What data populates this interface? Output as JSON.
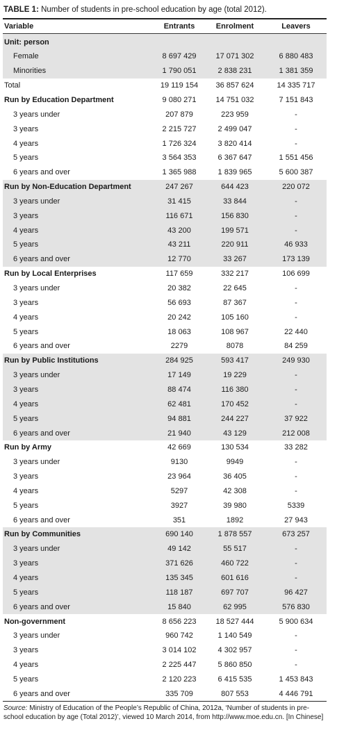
{
  "title": {
    "label": "TABLE 1:",
    "text": "Number of students in pre-school education by age (total 2012)."
  },
  "table": {
    "columns": [
      "Variable",
      "Entrants",
      "Enrolment",
      "Leavers"
    ],
    "rows": [
      [
        "Unit: person"
      ],
      [
        "Female",
        "8 697 429",
        "17 071 302",
        "6 880 483"
      ],
      [
        "Minorities",
        "1 790 051",
        "2 838 231",
        "1 381 359"
      ],
      [
        "Total",
        "19 119 154",
        "36 857 624",
        "14 335 717"
      ],
      [
        "Run by Education Department",
        "9 080 271",
        "14 751 032",
        "7 151 843"
      ],
      [
        "3 years under",
        "207 879",
        "223 959",
        "-"
      ],
      [
        "3 years",
        "2 215 727",
        "2 499 047",
        "-"
      ],
      [
        "4 years",
        "1 726 324",
        "3 820 414",
        "-"
      ],
      [
        "5 years",
        "3 564 353",
        "6 367 647",
        "1 551 456"
      ],
      [
        "6 years and over",
        "1 365 988",
        "1 839 965",
        "5 600 387"
      ],
      [
        "Run by Non-Education Department",
        "247 267",
        "644 423",
        "220 072"
      ],
      [
        "3 years under",
        "31 415",
        "33 844",
        "-"
      ],
      [
        "3 years",
        "116 671",
        "156 830",
        "-"
      ],
      [
        "4 years",
        "43 200",
        "199 571",
        "-"
      ],
      [
        "5 years",
        "43 211",
        "220 911",
        "46 933"
      ],
      [
        "6 years and over",
        "12 770",
        "33 267",
        "173 139"
      ],
      [
        "Run by Local Enterprises",
        "117 659",
        "332 217",
        "106 699"
      ],
      [
        "3 years under",
        "20 382",
        "22 645",
        "-"
      ],
      [
        "3 years",
        "56 693",
        "87 367",
        "-"
      ],
      [
        "4 years",
        "20 242",
        "105 160",
        "-"
      ],
      [
        "5 years",
        "18 063",
        "108 967",
        "22 440"
      ],
      [
        "6 years and over",
        "2279",
        "8078",
        "84 259"
      ],
      [
        "Run by Public Institutions",
        "284 925",
        "593 417",
        "249 930"
      ],
      [
        "3 years under",
        "17 149",
        "19 229",
        "-"
      ],
      [
        "3 years",
        "88 474",
        "116 380",
        "-"
      ],
      [
        "4 years",
        "62 481",
        "170 452",
        "-"
      ],
      [
        "5 years",
        "94 881",
        "244 227",
        "37 922"
      ],
      [
        "6 years and over",
        "21 940",
        "43 129",
        "212 008"
      ],
      [
        "Run by Army",
        "42 669",
        "130 534",
        "33 282"
      ],
      [
        "3 years under",
        "9130",
        "9949",
        "-"
      ],
      [
        "3 years",
        "23 964",
        "36 405",
        "-"
      ],
      [
        "4 years",
        "5297",
        "42 308",
        "-"
      ],
      [
        "5 years",
        "3927",
        "39 980",
        "5339"
      ],
      [
        "6 years and over",
        "351",
        "1892",
        "27 943"
      ],
      [
        "Run by Communities",
        "690 140",
        "1 878 557",
        "673 257"
      ],
      [
        "3 years under",
        "49 142",
        "55 517",
        "-"
      ],
      [
        "3 years",
        "371 626",
        "460 722",
        "-"
      ],
      [
        "4 years",
        "135 345",
        "601 616",
        "-"
      ],
      [
        "5 years",
        "118 187",
        "697 707",
        "96 427"
      ],
      [
        "6 years and over",
        "15 840",
        "62 995",
        "576 830"
      ],
      [
        "Non-government",
        "8 656 223",
        "18 527 444",
        "5 900 634"
      ],
      [
        "3 years under",
        "960 742",
        "1 140 549",
        "-"
      ],
      [
        "3 years",
        "3 014 102",
        "4 302 957",
        "-"
      ],
      [
        "4 years",
        "2 225 447",
        "5 860 850",
        "-"
      ],
      [
        "5 years",
        "2 120 223",
        "6 415 535",
        "1 453 843"
      ],
      [
        "6 years and over",
        "335 709",
        "807 553",
        "4 446 791"
      ]
    ]
  },
  "source": {
    "label": "Source:",
    "text": "Ministry of Education of the People’s Republic of China, 2012a, ‘Number of students in pre-school education by age (Total 2012)’, viewed 10 March 2014, from http://www.moe.edu.cn. [In Chinese]"
  }
}
